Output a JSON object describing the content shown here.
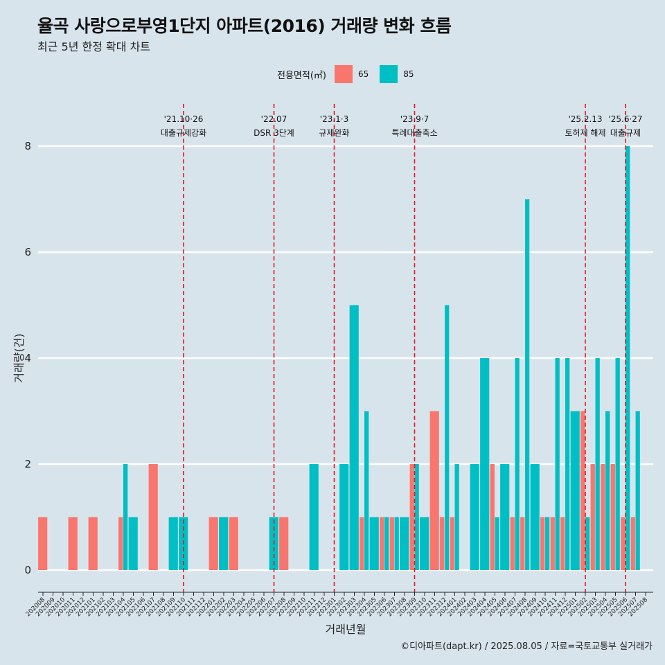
{
  "title": "율곡 사랑으로부영1단지 아파트(2016) 거래량 변화 흐름",
  "subtitle": "최근 5년 한정 확대 차트",
  "caption": "©디아파트(dapt.kr) / 2025.08.05 / 자료=국토교통부 실거래가",
  "legend": {
    "title": "전용면적(㎡)",
    "items": [
      {
        "label": "65",
        "color": "#f8766d"
      },
      {
        "label": "85",
        "color": "#00bfc4"
      }
    ]
  },
  "chart_data": {
    "type": "bar",
    "xlabel": "거래년월",
    "ylabel": "거래량(건)",
    "ylim": [
      0,
      8
    ],
    "yticks": [
      0,
      2,
      4,
      6,
      8
    ],
    "grid": true,
    "legend_position": "top",
    "categories": [
      "202008",
      "202009",
      "202010",
      "202011",
      "202012",
      "202101",
      "202102",
      "202103",
      "202104",
      "202105",
      "202106",
      "202107",
      "202108",
      "202109",
      "202110",
      "202111",
      "202112",
      "202201",
      "202202",
      "202203",
      "202204",
      "202205",
      "202206",
      "202207",
      "202208",
      "202209",
      "202210",
      "202211",
      "202212",
      "202301",
      "202302",
      "202303",
      "202304",
      "202305",
      "202306",
      "202307",
      "202308",
      "202309",
      "202310",
      "202311",
      "202312",
      "202401",
      "202402",
      "202403",
      "202404",
      "202405",
      "202406",
      "202407",
      "202408",
      "202409",
      "202410",
      "202411",
      "202412",
      "202501",
      "202502",
      "202503",
      "202504",
      "202505",
      "202506",
      "202507",
      "202508"
    ],
    "series": [
      {
        "name": "65",
        "color": "#f8766d",
        "values": [
          1,
          0,
          0,
          1,
          0,
          1,
          0,
          0,
          1,
          0,
          0,
          2,
          0,
          0,
          0,
          0,
          0,
          1,
          0,
          1,
          0,
          0,
          0,
          0,
          1,
          0,
          0,
          0,
          0,
          0,
          0,
          0,
          1,
          0,
          1,
          1,
          0,
          2,
          0,
          3,
          1,
          1,
          0,
          0,
          0,
          2,
          0,
          1,
          1,
          0,
          1,
          1,
          1,
          0,
          3,
          2,
          2,
          2,
          1,
          1,
          0
        ]
      },
      {
        "name": "85",
        "color": "#00bfc4",
        "values": [
          0,
          0,
          0,
          0,
          0,
          0,
          0,
          0,
          2,
          1,
          0,
          0,
          0,
          1,
          1,
          0,
          0,
          0,
          1,
          0,
          0,
          0,
          0,
          1,
          0,
          0,
          0,
          2,
          0,
          0,
          2,
          5,
          3,
          1,
          1,
          1,
          1,
          2,
          1,
          0,
          5,
          2,
          0,
          2,
          4,
          1,
          2,
          4,
          7,
          2,
          1,
          4,
          4,
          3,
          1,
          4,
          3,
          4,
          8,
          3,
          0
        ]
      }
    ],
    "annotations": [
      {
        "month": "202110",
        "date": "'21.10·26",
        "label": "대출규제강화"
      },
      {
        "month": "202207",
        "date": "'22.07",
        "label": "DSR 3단계"
      },
      {
        "month": "202301",
        "date": "'23.1·3",
        "label": "규제완화"
      },
      {
        "month": "202309",
        "date": "'23.9·7",
        "label": "특례대출축소"
      },
      {
        "month": "202502",
        "date": "'25.2.13",
        "label": "토허제 해제"
      },
      {
        "month": "202506",
        "date": "'25.6·27",
        "label": "대출규제"
      }
    ]
  }
}
